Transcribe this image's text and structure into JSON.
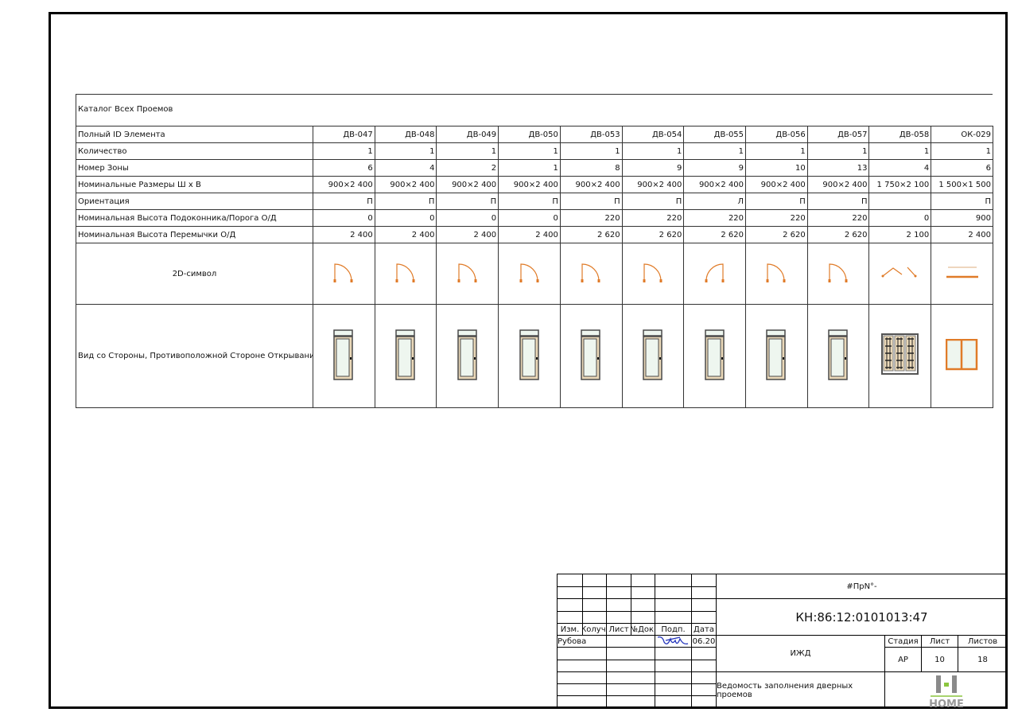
{
  "catalog": {
    "title": "Каталог Всех Проемов",
    "rows": [
      {
        "label": "Полный ID Элемента",
        "values": [
          "ДВ-047",
          "ДВ-048",
          "ДВ-049",
          "ДВ-050",
          "ДВ-053",
          "ДВ-054",
          "ДВ-055",
          "ДВ-056",
          "ДВ-057",
          "ДВ-058",
          "ОК-029"
        ]
      },
      {
        "label": "Количество",
        "values": [
          "1",
          "1",
          "1",
          "1",
          "1",
          "1",
          "1",
          "1",
          "1",
          "1",
          "1"
        ]
      },
      {
        "label": "Номер Зоны",
        "values": [
          "6",
          "4",
          "2",
          "1",
          "8",
          "9",
          "9",
          "10",
          "13",
          "4",
          "6"
        ]
      },
      {
        "label": "Номинальные Размеры  Ш x В",
        "values": [
          "900×2 400",
          "900×2 400",
          "900×2 400",
          "900×2 400",
          "900×2 400",
          "900×2 400",
          "900×2 400",
          "900×2 400",
          "900×2 400",
          "1 750×2 100",
          "1 500×1 500"
        ]
      },
      {
        "label": "Ориентация",
        "values": [
          "П",
          "П",
          "П",
          "П",
          "П",
          "П",
          "Л",
          "П",
          "П",
          "",
          "П"
        ]
      },
      {
        "label": "Номинальная Высота Подоконника/Порога О/Д",
        "values": [
          "0",
          "0",
          "0",
          "0",
          "220",
          "220",
          "220",
          "220",
          "220",
          "0",
          "900"
        ]
      },
      {
        "label": "Номинальная Высота Перемычки О/Д",
        "values": [
          "2 400",
          "2 400",
          "2 400",
          "2 400",
          "2 620",
          "2 620",
          "2 620",
          "2 620",
          "2 620",
          "2 100",
          "2 400"
        ]
      }
    ],
    "symbol_label": "2D-символ",
    "view_label": "Вид со Стороны, Противоположной Стороне Открывания",
    "symbols": [
      "door-swing-right",
      "door-swing-right",
      "door-swing-right",
      "door-swing-right",
      "door-swing-right",
      "door-swing-right",
      "door-swing-left",
      "door-swing-right",
      "door-swing-right",
      "folding-door",
      "window"
    ],
    "views": [
      "single-door",
      "single-door",
      "single-door",
      "single-door",
      "single-door",
      "single-door",
      "single-door",
      "single-door",
      "single-door",
      "triple-glazed-door",
      "double-window"
    ],
    "colors": {
      "symbol": "#e07b28",
      "frame": "#4a4a4a",
      "glass": "#eef6ef",
      "wood": "#ead8b8"
    }
  },
  "title_block": {
    "headers": [
      "Изм.",
      "Колуч.",
      "Лист",
      "№Док.",
      "Подп.",
      "Дата"
    ],
    "author": "Рубова",
    "date": "06.20",
    "code": "#ПрN°-",
    "cadastral": "КН:86:12:0101013:47",
    "project": "ИЖД",
    "stage_label": "Стадия",
    "sheet_label": "Лист",
    "sheets_label": "Листов",
    "stage": "АР",
    "sheet": "10",
    "sheets": "18",
    "sheet_title": "Ведомость заполнения дверных проемов",
    "logo_text": "HOME"
  }
}
